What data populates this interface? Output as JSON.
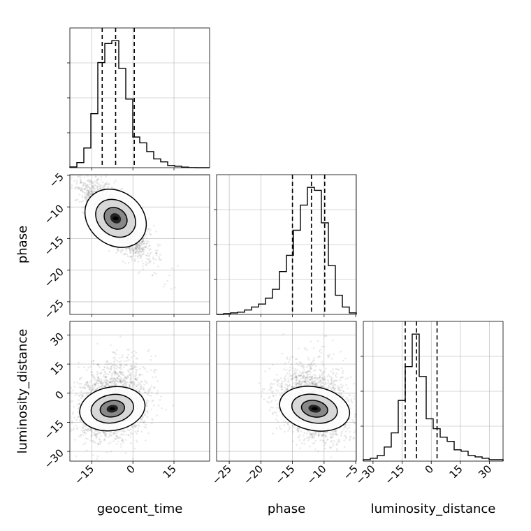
{
  "chart_data": {
    "type": "corner",
    "parameters": [
      "geocent_time",
      "phase",
      "luminosity_distance"
    ],
    "axis_labels": {
      "x": [
        "geocent_time",
        "phase",
        "luminosity_distance"
      ],
      "y": [
        "",
        "phase",
        "luminosity_distance"
      ]
    },
    "ranges": {
      "geocent_time": [
        -23,
        28
      ],
      "phase": [
        -27.0,
        -4.9
      ],
      "luminosity_distance": [
        -35,
        37
      ]
    },
    "ticks": {
      "geocent_time": [
        -15,
        0,
        15
      ],
      "phase": [
        -25,
        -20,
        -15,
        -10,
        -5
      ],
      "luminosity_distance": [
        -30,
        -15,
        0,
        15,
        30
      ]
    },
    "tick_labels": {
      "geocent_time": [
        "−15",
        "0",
        "15"
      ],
      "phase": [
        "−25",
        "−20",
        "−15",
        "−10",
        "−5"
      ],
      "luminosity_distance": [
        "−30",
        "−15",
        "0",
        "15",
        "30"
      ]
    },
    "quantiles": {
      "geocent_time": [
        -11.2,
        -6.3,
        0.5
      ],
      "phase": [
        -15.0,
        -12.0,
        -9.9
      ],
      "luminosity_distance": [
        -13.4,
        -7.6,
        3.0
      ]
    },
    "histograms": {
      "geocent_time": {
        "bin_edges": [
          -23,
          -20.45,
          -17.9,
          -15.35,
          -12.8,
          -10.25,
          -7.7,
          -5.15,
          -2.6,
          -0.05,
          2.5,
          5.05,
          7.6,
          10.15,
          12.7,
          15.25,
          17.8,
          20.35,
          22.9,
          25.45,
          28
        ],
        "counts": [
          0.5,
          3.5,
          13.5,
          37,
          72,
          85,
          87,
          68,
          47,
          21,
          17,
          11,
          6,
          4,
          1.5,
          1,
          0.4,
          0.1,
          0,
          0
        ]
      },
      "phase": {
        "bin_edges": [
          -27.0,
          -25.895,
          -24.79,
          -23.685,
          -22.58,
          -21.475,
          -20.37,
          -19.265,
          -18.16,
          -17.055,
          -15.95,
          -14.845,
          -13.74,
          -12.635,
          -11.53,
          -10.425,
          -9.32,
          -8.215,
          -7.11,
          -6.005,
          -4.9
        ],
        "counts": [
          0,
          0.5,
          1,
          1.5,
          3,
          5,
          7,
          11,
          17,
          29,
          40,
          57,
          74,
          86,
          84,
          62,
          33,
          13,
          5,
          1
        ]
      },
      "luminosity_distance": {
        "bin_edges": [
          -35,
          -31.4,
          -27.8,
          -24.2,
          -20.6,
          -17,
          -13.4,
          -9.8,
          -6.2,
          -2.6,
          1,
          4.6,
          8.2,
          11.8,
          15.4,
          19,
          22.6,
          26.2,
          29.8,
          33.4,
          37
        ],
        "counts": [
          1,
          2,
          4,
          10,
          20,
          43,
          67,
          90,
          60,
          30,
          23,
          17,
          14,
          8,
          7,
          4,
          3,
          2,
          1,
          1
        ]
      }
    },
    "joint_2d": [
      {
        "x": "geocent_time",
        "y": "phase",
        "center": [
          -6.3,
          -11.8
        ],
        "spread": [
          6.0,
          3.0
        ],
        "correlation": -0.78
      },
      {
        "x": "geocent_time",
        "y": "luminosity_distance",
        "center": [
          -7.5,
          -8.0
        ],
        "spread": [
          6.0,
          8.0
        ],
        "correlation": 0.2
      },
      {
        "x": "phase",
        "y": "luminosity_distance",
        "center": [
          -11.5,
          -8.0
        ],
        "spread": [
          2.8,
          8.0
        ],
        "correlation": -0.25
      }
    ],
    "grid": true,
    "colors": {
      "line": "#000000",
      "grid": "#b0b0b0",
      "scatter": "#555555"
    }
  }
}
